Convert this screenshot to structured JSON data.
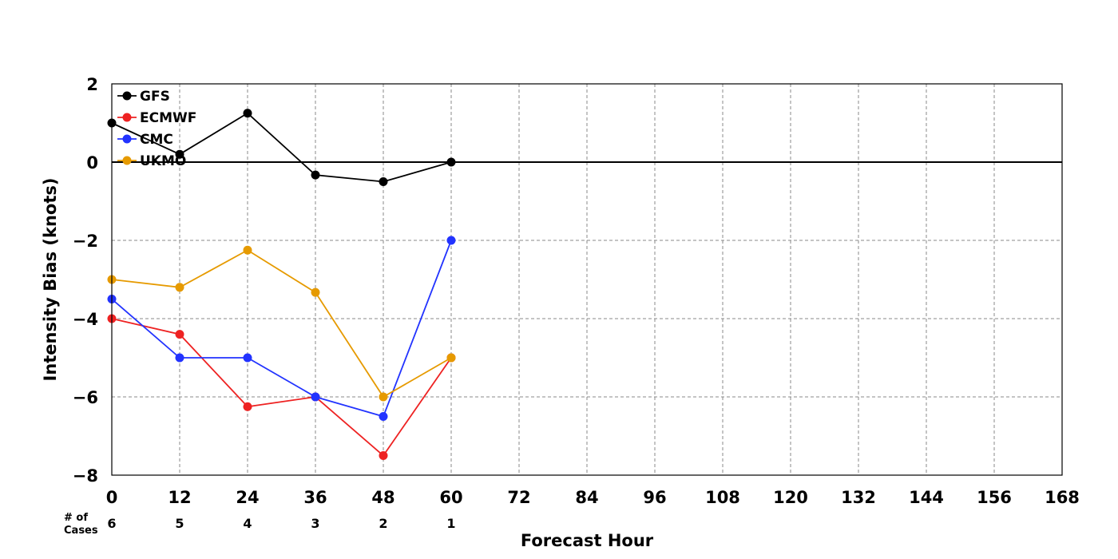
{
  "chart_data": {
    "type": "line",
    "xlabel": "Forecast Hour",
    "ylabel": "Intensity Bias (knots)",
    "x_ticks": [
      0,
      12,
      24,
      36,
      48,
      60,
      72,
      84,
      96,
      108,
      120,
      132,
      144,
      156,
      168
    ],
    "y_ticks": [
      2,
      0,
      -2,
      -4,
      -6,
      -8
    ],
    "y_tick_labels": [
      "2",
      "0",
      "−2",
      "−4",
      "−6",
      "−8"
    ],
    "xlim": [
      0,
      168
    ],
    "ylim": [
      -8,
      2
    ],
    "grid": true,
    "legend_position": "top-left",
    "cases_label_line1": "# of",
    "cases_label_line2": "Cases",
    "cases": [
      {
        "x": 0,
        "n": "6"
      },
      {
        "x": 12,
        "n": "5"
      },
      {
        "x": 24,
        "n": "4"
      },
      {
        "x": 36,
        "n": "3"
      },
      {
        "x": 48,
        "n": "2"
      },
      {
        "x": 60,
        "n": "1"
      }
    ],
    "x": [
      0,
      12,
      24,
      36,
      48,
      60
    ],
    "series": [
      {
        "name": "GFS",
        "color": "#000000",
        "values": [
          1.0,
          0.2,
          1.25,
          -0.33,
          -0.5,
          0.0
        ]
      },
      {
        "name": "ECMWF",
        "color": "#ee2222",
        "values": [
          -4.0,
          -4.4,
          -6.25,
          -6.0,
          -7.5,
          -5.0
        ]
      },
      {
        "name": "CMC",
        "color": "#2233ff",
        "values": [
          -3.5,
          -5.0,
          -5.0,
          -6.0,
          -6.5,
          -2.0
        ]
      },
      {
        "name": "UKMO",
        "color": "#e69a00",
        "values": [
          -3.0,
          -3.2,
          -2.25,
          -3.33,
          -6.0,
          -5.0
        ]
      }
    ]
  }
}
